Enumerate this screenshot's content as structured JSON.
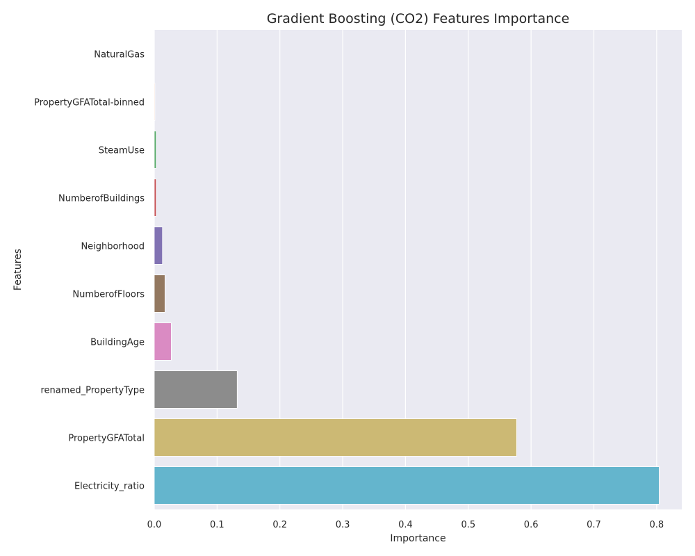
{
  "chart_data": {
    "type": "bar",
    "orientation": "horizontal",
    "title": "Gradient Boosting (CO2) Features Importance",
    "xlabel": "Importance",
    "ylabel": "Features",
    "xlim": [
      0,
      0.84
    ],
    "x_ticks": [
      0.0,
      0.1,
      0.2,
      0.3,
      0.4,
      0.5,
      0.6,
      0.7,
      0.8
    ],
    "x_tick_labels": [
      "0.0",
      "0.1",
      "0.2",
      "0.3",
      "0.4",
      "0.5",
      "0.6",
      "0.7",
      "0.8"
    ],
    "grid": true,
    "categories": [
      "NaturalGas",
      "PropertyGFATotal-binned",
      "SteamUse",
      "NumberofBuildings",
      "Neighborhood",
      "NumberofFloors",
      "BuildingAge",
      "renamed_PropertyType",
      "PropertyGFATotal",
      "Electricity_ratio"
    ],
    "values": [
      0.0,
      0.001,
      0.003,
      0.003,
      0.013,
      0.017,
      0.027,
      0.132,
      0.577,
      0.804
    ],
    "colors": [
      "#4c72b0",
      "#dd8452",
      "#55a868",
      "#c44e52",
      "#8172b3",
      "#937860",
      "#da8bc3",
      "#8c8c8c",
      "#ccb974",
      "#64b5cd"
    ],
    "background_color": "#eaeaf2",
    "grid_color": "#ffffff"
  }
}
